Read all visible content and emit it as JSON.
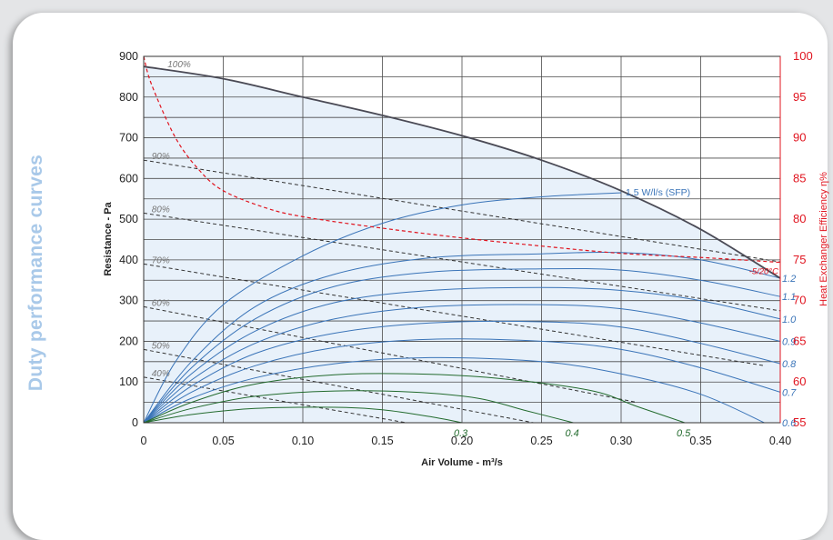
{
  "page": {
    "side_title": "Duty performance curves"
  },
  "chart_data": {
    "type": "line",
    "title": "",
    "xlabel": "Air Volume - m³/s",
    "ylabel": "Resistance - Pa",
    "y2label": "Heat Exchanger Efficiency η%",
    "xlim": [
      0,
      0.4
    ],
    "ylim": [
      0,
      900
    ],
    "y2lim": [
      55,
      100
    ],
    "grid": true,
    "x_ticks": [
      "0",
      "0.05",
      "0.10",
      "0.15",
      "0.20",
      "0.25",
      "0.30",
      "0.35",
      "0.40"
    ],
    "y_ticks": [
      "0",
      "100",
      "200",
      "300",
      "400",
      "500",
      "600",
      "700",
      "800",
      "900"
    ],
    "y2_ticks": [
      "55",
      "60",
      "65",
      "70",
      "75",
      "80",
      "85",
      "90",
      "95",
      "100"
    ],
    "colors": {
      "fan_curve": "#4a4a55",
      "sfp_blue": "#3a74b8",
      "sfp_green": "#236b2e",
      "efficiency": "#e0141f",
      "fan_speed": "#333333",
      "area_fill": "#e8f1fa"
    },
    "max_fan_curve": {
      "name": "100%",
      "points": [
        [
          0,
          875
        ],
        [
          0.05,
          845
        ],
        [
          0.1,
          800
        ],
        [
          0.15,
          755
        ],
        [
          0.2,
          705
        ],
        [
          0.25,
          645
        ],
        [
          0.3,
          570
        ],
        [
          0.35,
          475
        ],
        [
          0.4,
          355
        ]
      ]
    },
    "fan_speed_lines": [
      {
        "label": "90%",
        "points": [
          [
            0,
            645
          ],
          [
            0.4,
            395
          ]
        ]
      },
      {
        "label": "80%",
        "points": [
          [
            0,
            515
          ],
          [
            0.4,
            275
          ]
        ]
      },
      {
        "label": "70%",
        "points": [
          [
            0,
            390
          ],
          [
            0.39,
            140
          ]
        ]
      },
      {
        "label": "60%",
        "points": [
          [
            0,
            285
          ],
          [
            0.31,
            50
          ]
        ]
      },
      {
        "label": "50%",
        "points": [
          [
            0,
            180
          ],
          [
            0.245,
            0
          ]
        ]
      },
      {
        "label": "40%",
        "points": [
          [
            0,
            112
          ],
          [
            0.165,
            0
          ]
        ]
      }
    ],
    "sfp_curves": [
      {
        "label": "1.5 W/l/s (SFP)",
        "color": "blue",
        "points": [
          [
            0,
            0
          ],
          [
            0.02,
            150
          ],
          [
            0.05,
            290
          ],
          [
            0.1,
            410
          ],
          [
            0.15,
            490
          ],
          [
            0.2,
            535
          ],
          [
            0.25,
            555
          ],
          [
            0.3,
            565
          ]
        ]
      },
      {
        "label": "1.2",
        "color": "blue",
        "points": [
          [
            0,
            0
          ],
          [
            0.03,
            150
          ],
          [
            0.07,
            285
          ],
          [
            0.12,
            365
          ],
          [
            0.18,
            405
          ],
          [
            0.25,
            415
          ],
          [
            0.3,
            418
          ],
          [
            0.35,
            400
          ],
          [
            0.4,
            355
          ]
        ]
      },
      {
        "label": "1.1",
        "color": "blue",
        "points": [
          [
            0,
            0
          ],
          [
            0.03,
            135
          ],
          [
            0.07,
            255
          ],
          [
            0.12,
            335
          ],
          [
            0.18,
            370
          ],
          [
            0.25,
            378
          ],
          [
            0.3,
            375
          ],
          [
            0.35,
            350
          ],
          [
            0.4,
            310
          ]
        ]
      },
      {
        "label": "1.0",
        "color": "blue",
        "points": [
          [
            0,
            0
          ],
          [
            0.03,
            120
          ],
          [
            0.07,
            225
          ],
          [
            0.12,
            295
          ],
          [
            0.18,
            325
          ],
          [
            0.25,
            332
          ],
          [
            0.3,
            325
          ],
          [
            0.35,
            300
          ],
          [
            0.4,
            255
          ]
        ]
      },
      {
        "label": "0.9",
        "color": "blue",
        "points": [
          [
            0,
            0
          ],
          [
            0.03,
            105
          ],
          [
            0.07,
            195
          ],
          [
            0.12,
            255
          ],
          [
            0.18,
            285
          ],
          [
            0.25,
            290
          ],
          [
            0.3,
            280
          ],
          [
            0.35,
            245
          ],
          [
            0.4,
            200
          ]
        ]
      },
      {
        "label": "0.8",
        "color": "blue",
        "points": [
          [
            0,
            0
          ],
          [
            0.03,
            90
          ],
          [
            0.07,
            170
          ],
          [
            0.12,
            220
          ],
          [
            0.18,
            245
          ],
          [
            0.25,
            248
          ],
          [
            0.3,
            235
          ],
          [
            0.35,
            195
          ],
          [
            0.4,
            145
          ]
        ]
      },
      {
        "label": "0.7",
        "color": "blue",
        "points": [
          [
            0,
            0
          ],
          [
            0.03,
            75
          ],
          [
            0.07,
            140
          ],
          [
            0.12,
            185
          ],
          [
            0.18,
            205
          ],
          [
            0.25,
            200
          ],
          [
            0.3,
            180
          ],
          [
            0.35,
            135
          ],
          [
            0.4,
            75
          ]
        ]
      },
      {
        "label": "0.6",
        "color": "blue",
        "points": [
          [
            0,
            0
          ],
          [
            0.03,
            60
          ],
          [
            0.07,
            110
          ],
          [
            0.12,
            145
          ],
          [
            0.18,
            160
          ],
          [
            0.25,
            150
          ],
          [
            0.3,
            120
          ],
          [
            0.35,
            70
          ],
          [
            0.39,
            0
          ]
        ]
      },
      {
        "label": "0.5",
        "color": "green",
        "points": [
          [
            0,
            0
          ],
          [
            0.03,
            50
          ],
          [
            0.07,
            95
          ],
          [
            0.12,
            118
          ],
          [
            0.17,
            120
          ],
          [
            0.22,
            110
          ],
          [
            0.28,
            80
          ],
          [
            0.31,
            40
          ],
          [
            0.34,
            0
          ]
        ]
      },
      {
        "label": "0.4",
        "color": "green",
        "points": [
          [
            0,
            0
          ],
          [
            0.03,
            35
          ],
          [
            0.07,
            65
          ],
          [
            0.12,
            78
          ],
          [
            0.17,
            75
          ],
          [
            0.21,
            60
          ],
          [
            0.24,
            30
          ],
          [
            0.27,
            0
          ]
        ]
      },
      {
        "label": "0.3",
        "color": "green",
        "points": [
          [
            0,
            0
          ],
          [
            0.03,
            20
          ],
          [
            0.07,
            35
          ],
          [
            0.12,
            38
          ],
          [
            0.15,
            32
          ],
          [
            0.18,
            15
          ],
          [
            0.2,
            0
          ]
        ]
      }
    ],
    "efficiency_curve": {
      "label": "-5/20°C",
      "axis": "y2",
      "points": [
        [
          0,
          100
        ],
        [
          0.005,
          96.5
        ],
        [
          0.02,
          90
        ],
        [
          0.035,
          86
        ],
        [
          0.05,
          83.5
        ],
        [
          0.075,
          81.5
        ],
        [
          0.1,
          80.3
        ],
        [
          0.15,
          78.9
        ],
        [
          0.2,
          77.7
        ],
        [
          0.25,
          76.7
        ],
        [
          0.3,
          75.8
        ],
        [
          0.35,
          75.3
        ],
        [
          0.4,
          74.7
        ]
      ]
    }
  }
}
